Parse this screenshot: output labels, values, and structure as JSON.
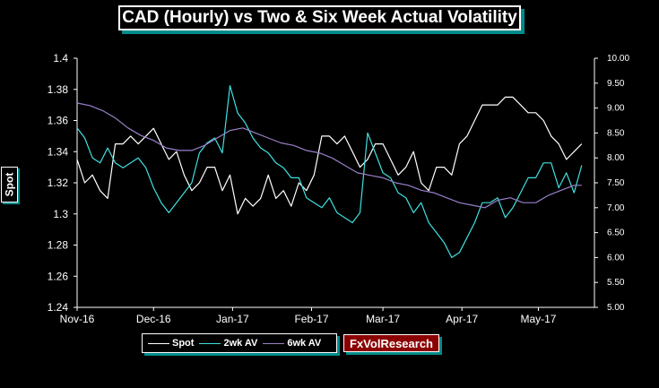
{
  "chart_data": {
    "type": "line",
    "title": "CAD (Hourly) vs Two & Six Week Actual Volatility",
    "ylabel": "Spot",
    "left_axis": {
      "ylim": [
        1.24,
        1.4
      ],
      "ticks": [
        "1.4",
        "1.38",
        "1.36",
        "1.34",
        "1.32",
        "1.3",
        "1.28",
        "1.26",
        "1.24"
      ]
    },
    "right_axis": {
      "ylim": [
        5.0,
        10.0
      ],
      "ticks": [
        "10.00",
        "9.50",
        "9.00",
        "8.50",
        "8.00",
        "7.50",
        "7.00",
        "6.50",
        "6.00",
        "5.50",
        "5.00"
      ]
    },
    "x_ticks": [
      "Nov-16",
      "Dec-16",
      "Jan-17",
      "Feb-17",
      "Mar-17",
      "Apr-17",
      "May-17"
    ],
    "x_range_days": [
      0,
      203
    ],
    "grid": false,
    "series": [
      {
        "name": "Spot",
        "axis": "left",
        "color": "#ffffff",
        "x": [
          0,
          3,
          6,
          9,
          12,
          15,
          18,
          21,
          24,
          27,
          30,
          33,
          36,
          39,
          42,
          45,
          48,
          51,
          54,
          57,
          60,
          63,
          66,
          69,
          72,
          75,
          78,
          81,
          84,
          87,
          90,
          93,
          96,
          99,
          102,
          105,
          108,
          111,
          114,
          117,
          120,
          123,
          126,
          129,
          132,
          135,
          138,
          141,
          144,
          147,
          150,
          153,
          156,
          159,
          162,
          165,
          168,
          171,
          174,
          177,
          180,
          183,
          186,
          189,
          192,
          195,
          198
        ],
        "values": [
          1.335,
          1.32,
          1.325,
          1.315,
          1.31,
          1.345,
          1.345,
          1.35,
          1.345,
          1.35,
          1.355,
          1.345,
          1.335,
          1.34,
          1.325,
          1.315,
          1.32,
          1.33,
          1.33,
          1.315,
          1.325,
          1.3,
          1.31,
          1.305,
          1.31,
          1.325,
          1.31,
          1.315,
          1.305,
          1.32,
          1.315,
          1.325,
          1.35,
          1.35,
          1.345,
          1.35,
          1.34,
          1.33,
          1.335,
          1.345,
          1.345,
          1.335,
          1.325,
          1.33,
          1.34,
          1.32,
          1.315,
          1.33,
          1.33,
          1.325,
          1.345,
          1.35,
          1.36,
          1.37,
          1.37,
          1.37,
          1.375,
          1.375,
          1.37,
          1.365,
          1.365,
          1.36,
          1.35,
          1.345,
          1.335,
          1.34,
          1.345
        ]
      },
      {
        "name": "2wk AV",
        "axis": "right",
        "color": "#40e0e0",
        "x": [
          0,
          3,
          6,
          9,
          12,
          15,
          18,
          21,
          24,
          27,
          30,
          33,
          36,
          39,
          42,
          45,
          48,
          51,
          54,
          57,
          60,
          63,
          66,
          69,
          72,
          75,
          78,
          81,
          84,
          87,
          90,
          93,
          96,
          99,
          102,
          105,
          108,
          111,
          114,
          117,
          120,
          123,
          126,
          129,
          132,
          135,
          138,
          141,
          144,
          147,
          150,
          153,
          156,
          159,
          162,
          165,
          168,
          171,
          174,
          177,
          180,
          183,
          186,
          189,
          192,
          195,
          198
        ],
        "values": [
          8.6,
          8.4,
          8.0,
          7.9,
          8.2,
          7.9,
          7.8,
          7.9,
          8.0,
          7.8,
          7.4,
          7.1,
          6.9,
          7.1,
          7.3,
          7.5,
          8.1,
          8.3,
          8.4,
          8.1,
          9.45,
          8.9,
          8.7,
          8.4,
          8.2,
          8.1,
          7.9,
          7.8,
          7.6,
          7.6,
          7.2,
          7.1,
          7.0,
          7.2,
          6.9,
          6.8,
          6.7,
          6.9,
          8.5,
          8.1,
          7.7,
          7.6,
          7.3,
          7.2,
          6.9,
          7.1,
          6.7,
          6.5,
          6.3,
          6.0,
          6.1,
          6.4,
          6.7,
          7.1,
          7.1,
          7.2,
          6.8,
          7.0,
          7.3,
          7.6,
          7.6,
          7.9,
          7.9,
          7.4,
          7.7,
          7.3,
          7.85
        ]
      },
      {
        "name": "6wk AV",
        "axis": "right",
        "color": "#9980c8",
        "x": [
          0,
          5,
          10,
          15,
          20,
          25,
          30,
          35,
          40,
          45,
          50,
          55,
          60,
          65,
          70,
          75,
          80,
          85,
          90,
          95,
          100,
          105,
          110,
          115,
          120,
          125,
          130,
          135,
          140,
          145,
          150,
          155,
          160,
          165,
          170,
          175,
          180,
          185,
          190,
          195,
          198
        ],
        "values": [
          9.1,
          9.05,
          8.95,
          8.8,
          8.6,
          8.45,
          8.35,
          8.2,
          8.15,
          8.15,
          8.25,
          8.4,
          8.55,
          8.6,
          8.5,
          8.4,
          8.3,
          8.25,
          8.15,
          8.1,
          8.0,
          7.85,
          7.7,
          7.65,
          7.6,
          7.5,
          7.45,
          7.35,
          7.3,
          7.2,
          7.1,
          7.05,
          7.0,
          7.15,
          7.2,
          7.1,
          7.1,
          7.25,
          7.35,
          7.45,
          7.45
        ]
      }
    ],
    "legend_position": "bottom-left",
    "source_label": "FxVolResearch"
  }
}
